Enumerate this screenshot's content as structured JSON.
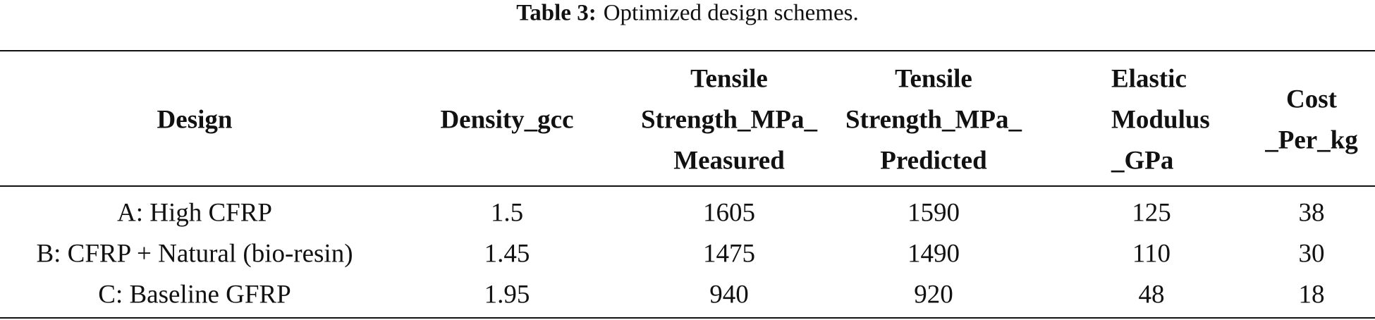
{
  "table": {
    "title": {
      "label": "Table 3:",
      "caption": "Optimized design schemes."
    },
    "header": [
      [
        "Design"
      ],
      [
        "Density_gcc"
      ],
      [
        "Tensile",
        "Strength_MPa_",
        "Measured"
      ],
      [
        "Tensile",
        "Strength_MPa_",
        "Predicted"
      ],
      [
        "Elastic",
        "Modulus",
        "_GPa"
      ],
      [
        "Cost",
        "_Per_kg"
      ]
    ],
    "rows": [
      [
        "A: High CFRP",
        1.5,
        1605,
        1590,
        125,
        38
      ],
      [
        "B: CFRP + Natural (bio-resin)",
        1.45,
        1475,
        1490,
        110,
        30
      ],
      [
        "C: Baseline GFRP",
        1.95,
        940,
        920,
        48,
        18
      ]
    ]
  }
}
